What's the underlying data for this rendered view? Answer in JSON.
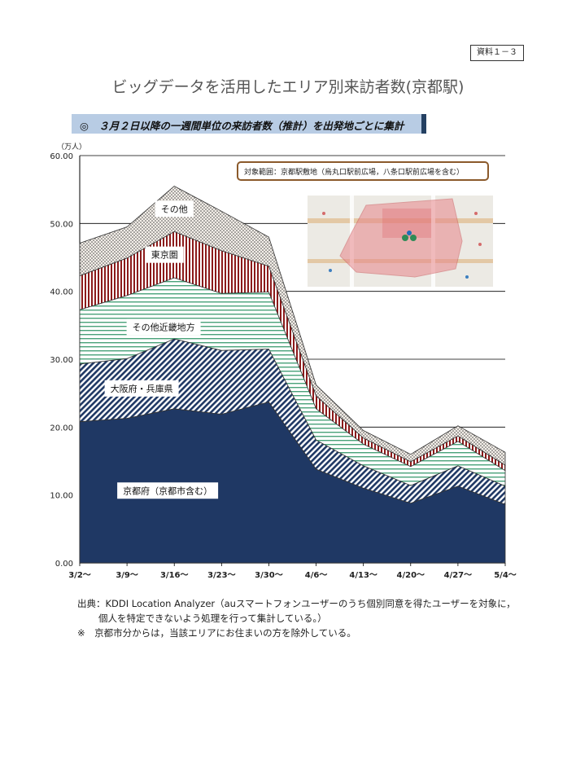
{
  "header": {
    "doc_ref": "資料１－３",
    "title": "ビッグデータを活用したエリア別来訪者数(京都駅)",
    "section": "◎　３月２日以降の一週間単位の来訪者数（推計）を出発地ごとに集計"
  },
  "chart_data": {
    "type": "area",
    "stacked": true,
    "ylabel": "（万人）",
    "ylim": [
      0,
      60
    ],
    "yticks": [
      "0.00",
      "10.00",
      "20.00",
      "30.00",
      "40.00",
      "50.00",
      "60.00"
    ],
    "ytick_values": [
      0,
      10,
      20,
      30,
      40,
      50,
      60
    ],
    "categories": [
      "3/2～",
      "3/9～",
      "3/16～",
      "3/23～",
      "3/30～",
      "4/6～",
      "4/13～",
      "4/20～",
      "4/27～",
      "5/4～"
    ],
    "series": [
      {
        "name": "京都府（京都市含む）",
        "color": "#1f3864",
        "values": [
          20.8,
          21.3,
          22.7,
          21.9,
          23.7,
          13.8,
          11.0,
          8.8,
          11.3,
          8.6
        ]
      },
      {
        "name": "大阪府・兵庫県",
        "color": "#8a8a8a",
        "values": [
          8.5,
          8.8,
          10.3,
          9.4,
          7.8,
          4.3,
          3.3,
          2.6,
          3.0,
          2.7
        ]
      },
      {
        "name": "その他近畿地方",
        "color": "#4aa27a",
        "values": [
          8.0,
          9.3,
          9.0,
          8.4,
          8.4,
          4.6,
          3.2,
          2.8,
          3.6,
          2.3
        ]
      },
      {
        "name": "東京圏",
        "color": "#8b1a1a",
        "values": [
          5.0,
          5.5,
          6.8,
          6.3,
          3.8,
          1.9,
          0.9,
          0.7,
          0.8,
          0.8
        ]
      },
      {
        "name": "その他",
        "color": "#555555",
        "values": [
          4.8,
          4.6,
          6.7,
          5.8,
          4.3,
          1.6,
          1.1,
          1.1,
          1.5,
          1.9
        ]
      }
    ],
    "grid": true,
    "legend": "inline labels on areas"
  },
  "inset": {
    "label": "対象範囲：京都駅敷地（烏丸口駅前広場，八条口駅前広場を含む）"
  },
  "notes": {
    "source_line1": "出典：KDDI Location Analyzer（auスマートフォンユーザーのうち個別同意を得たユーザーを対象に，",
    "source_line2": "個人を特定できないよう処理を行って集計している。）",
    "note": "※　京都市分からは，当該エリアにお住まいの方を除外している。"
  }
}
